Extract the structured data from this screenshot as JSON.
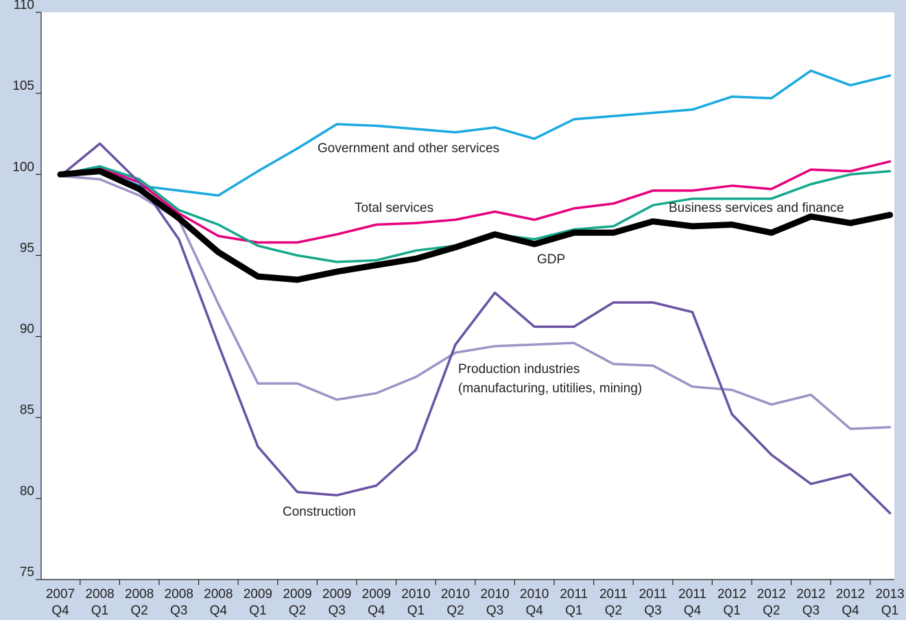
{
  "chart_data": {
    "type": "line",
    "categories": [
      "2007 Q4",
      "2008 Q1",
      "2008 Q2",
      "2008 Q3",
      "2008 Q4",
      "2009 Q1",
      "2009 Q2",
      "2009 Q3",
      "2009 Q4",
      "2010 Q1",
      "2010 Q2",
      "2010 Q3",
      "2010 Q4",
      "2011 Q1",
      "2011 Q2",
      "2011 Q3",
      "2011 Q4",
      "2012 Q1",
      "2012 Q2",
      "2012 Q3",
      "2012 Q4",
      "2013 Q1"
    ],
    "ylim": [
      75,
      110
    ],
    "yticks": [
      75,
      80,
      85,
      90,
      95,
      100,
      105,
      110
    ],
    "series": [
      {
        "name": "Government and other services",
        "color": "#1aa9e0",
        "values": [
          100,
          100.3,
          99.3,
          99.0,
          98.7,
          100.2,
          101.6,
          103.1,
          103.0,
          102.8,
          102.6,
          102.9,
          102.2,
          103.4,
          103.6,
          103.8,
          104.0,
          104.8,
          104.7,
          106.4,
          105.5,
          106.1
        ]
      },
      {
        "name": "Total services",
        "color": "#e6007e",
        "values": [
          100,
          100.4,
          99.5,
          97.6,
          96.2,
          95.8,
          95.8,
          96.3,
          96.9,
          97.0,
          97.2,
          97.7,
          97.2,
          97.9,
          98.2,
          99.0,
          99.0,
          99.3,
          99.1,
          100.3,
          100.2,
          100.8
        ]
      },
      {
        "name": "Business services and finance",
        "color": "#16a88c",
        "values": [
          100,
          100.5,
          99.7,
          97.8,
          96.9,
          95.6,
          95.0,
          94.6,
          94.7,
          95.3,
          95.6,
          96.3,
          96.0,
          96.6,
          96.8,
          98.1,
          98.5,
          98.5,
          98.5,
          99.4,
          100.0,
          100.2
        ]
      },
      {
        "name": "Production industries (manufacturing, utitilies, mining)",
        "color": "#9d93c6",
        "values": [
          99.9,
          99.7,
          98.7,
          97.2,
          92.0,
          87.1,
          87.1,
          86.1,
          86.5,
          87.5,
          89.0,
          89.4,
          89.5,
          89.6,
          88.3,
          88.2,
          86.9,
          86.7,
          85.8,
          86.4,
          84.3,
          84.4
        ]
      },
      {
        "name": "Construction",
        "color": "#6a53a3",
        "values": [
          99.9,
          101.9,
          99.5,
          96.0,
          89.5,
          83.2,
          80.4,
          80.2,
          80.8,
          83.0,
          89.5,
          92.7,
          90.6,
          90.6,
          92.1,
          92.1,
          91.5,
          85.2,
          82.7,
          80.9,
          81.5,
          79.1
        ]
      },
      {
        "name": "GDP",
        "color": "#000000",
        "values": [
          100,
          100.2,
          99.1,
          97.3,
          95.2,
          93.7,
          93.5,
          94.0,
          94.4,
          94.8,
          95.5,
          96.3,
          95.7,
          96.4,
          96.4,
          97.1,
          96.8,
          96.9,
          96.4,
          97.4,
          97.0,
          97.5
        ]
      }
    ]
  }
}
